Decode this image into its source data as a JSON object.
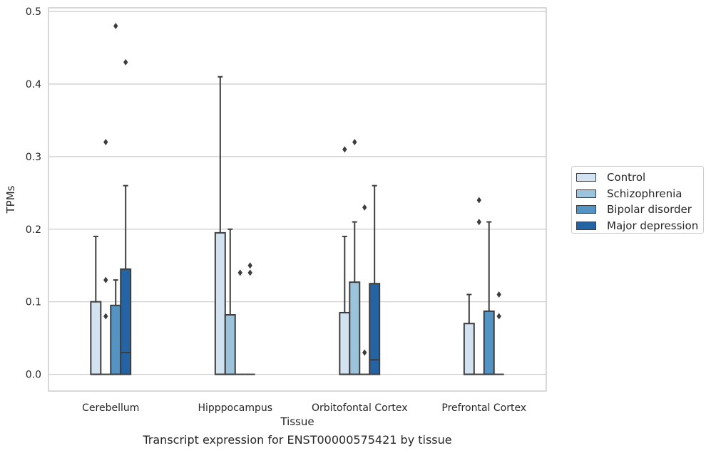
{
  "chart_data": {
    "type": "box",
    "title": "",
    "caption": "Transcript expression for ENST00000575421 by tissue",
    "xlabel": "Tissue",
    "ylabel": "TPMs",
    "ylim": [
      -0.023,
      0.505
    ],
    "yticks": [
      "0.0",
      "0.1",
      "0.2",
      "0.3",
      "0.4",
      "0.5"
    ],
    "ytick_values": [
      0,
      0.1,
      0.2,
      0.3,
      0.4,
      0.5
    ],
    "grid": "horizontal",
    "legend_placement": "right",
    "categories": [
      "Cerebellum",
      "Hipppocampus",
      "Orbitofontal Cortex",
      "Prefrontal Cortex"
    ],
    "series": [
      {
        "name": "Control",
        "color": "#d3e2f1",
        "boxes": [
          {
            "q1": 0,
            "median": 0,
            "q3": 0.1,
            "whislo": 0,
            "whishi": 0.19,
            "fliers": []
          },
          {
            "q1": 0,
            "median": 0,
            "q3": 0.195,
            "whislo": 0,
            "whishi": 0.41,
            "fliers": []
          },
          {
            "q1": 0,
            "median": 0,
            "q3": 0.085,
            "whislo": 0,
            "whishi": 0.19,
            "fliers": [
              0.31
            ]
          },
          {
            "q1": 0,
            "median": 0,
            "q3": 0.07,
            "whislo": 0,
            "whishi": 0.11,
            "fliers": []
          }
        ]
      },
      {
        "name": "Schizophrenia",
        "color": "#9cc3dc",
        "boxes": [
          {
            "q1": 0,
            "median": 0,
            "q3": 0,
            "whislo": 0,
            "whishi": 0,
            "fliers": [
              0.08,
              0.13,
              0.32
            ]
          },
          {
            "q1": 0,
            "median": 0,
            "q3": 0.082,
            "whislo": 0,
            "whishi": 0.2,
            "fliers": []
          },
          {
            "q1": 0,
            "median": 0,
            "q3": 0.127,
            "whislo": 0,
            "whishi": 0.21,
            "fliers": [
              0.32
            ]
          },
          {
            "q1": 0,
            "median": 0,
            "q3": 0,
            "whislo": 0,
            "whishi": 0,
            "fliers": [
              0.21,
              0.24
            ]
          }
        ]
      },
      {
        "name": "Bipolar disorder",
        "color": "#5394c5",
        "boxes": [
          {
            "q1": 0,
            "median": 0,
            "q3": 0.095,
            "whislo": 0,
            "whishi": 0.13,
            "fliers": [
              0.48
            ]
          },
          {
            "q1": 0,
            "median": 0,
            "q3": 0,
            "whislo": 0,
            "whishi": 0,
            "fliers": [
              0.14
            ]
          },
          {
            "q1": 0,
            "median": 0,
            "q3": 0,
            "whislo": 0,
            "whishi": 0,
            "fliers": [
              0.03,
              0.23
            ]
          },
          {
            "q1": 0,
            "median": 0,
            "q3": 0.087,
            "whislo": 0,
            "whishi": 0.21,
            "fliers": []
          }
        ]
      },
      {
        "name": "Major depression",
        "color": "#2464a4",
        "boxes": [
          {
            "q1": 0,
            "median": 0.03,
            "q3": 0.145,
            "whislo": 0,
            "whishi": 0.26,
            "fliers": [
              0.43
            ]
          },
          {
            "q1": 0,
            "median": 0,
            "q3": 0,
            "whislo": 0,
            "whishi": 0,
            "fliers": [
              0.14,
              0.15
            ]
          },
          {
            "q1": 0,
            "median": 0.02,
            "q3": 0.125,
            "whislo": 0,
            "whishi": 0.26,
            "fliers": []
          },
          {
            "q1": 0,
            "median": 0,
            "q3": 0,
            "whislo": 0,
            "whishi": 0,
            "fliers": [
              0.08,
              0.11
            ]
          }
        ]
      }
    ]
  }
}
